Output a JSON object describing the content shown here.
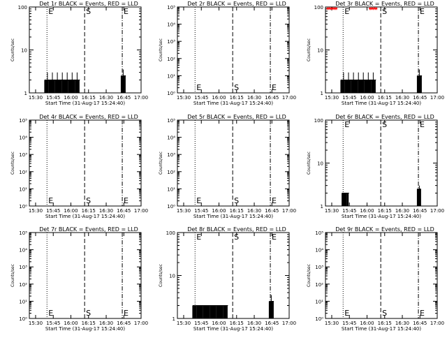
{
  "chart_data": [
    {
      "title": "Det 1r BLACK = Events, RED = LLD",
      "type": "line",
      "scale": "log",
      "ylim": [
        1,
        100
      ],
      "ytick_labels": [
        "1",
        "10",
        "100"
      ],
      "ylabel": "Counts/sec",
      "xlabel": "Start Time (31-Aug-17 15:24:40)",
      "xtick_labels": [
        "15:30",
        "15:45",
        "16:00",
        "16:15",
        "16:30",
        "16:45",
        "17:00"
      ],
      "markers": [
        {
          "label": "E",
          "t": 15.0,
          "style": "dotted"
        },
        {
          "label": "S",
          "t": 47.0,
          "style": "dashed"
        },
        {
          "label": "E",
          "t": 79.0,
          "style": "dashdot"
        }
      ],
      "black_segments": [
        {
          "t0": 13,
          "t1": 43,
          "level": 2.0,
          "spike": 3.0
        },
        {
          "t0": 78,
          "t1": 82,
          "level": 2.5,
          "spike": 3.5
        }
      ],
      "red_segments": []
    },
    {
      "title": "Det 2r BLACK = Events, RED = LLD",
      "type": "line",
      "scale": "log",
      "ylim": [
        1,
        100000
      ],
      "ytick_labels": [
        "10⁰",
        "10¹",
        "10²",
        "10³",
        "10⁴",
        "10⁵"
      ],
      "ylabel": "Counts/sec",
      "xlabel": "Start Time (31-Aug-17 15:24:40)",
      "xtick_labels": [
        "15:30",
        "15:45",
        "16:00",
        "16:15",
        "16:30",
        "16:45",
        "17:00"
      ],
      "markers": [
        {
          "label": "E",
          "t": 15.0,
          "style": "dotted"
        },
        {
          "label": "S",
          "t": 47.0,
          "style": "dashed"
        },
        {
          "label": "E",
          "t": 79.0,
          "style": "dashdot"
        }
      ],
      "black_segments": [],
      "red_segments": []
    },
    {
      "title": "Det 3r BLACK = Events, RED = LLD",
      "type": "line",
      "scale": "log",
      "ylim": [
        1,
        100
      ],
      "ytick_labels": [
        "1",
        "10",
        "100"
      ],
      "ylabel": "Counts/sec",
      "xlabel": "Start Time (31-Aug-17 15:24:40)",
      "xtick_labels": [
        "15:30",
        "15:45",
        "16:00",
        "16:15",
        "16:30",
        "16:45",
        "17:00"
      ],
      "markers": [
        {
          "label": "E",
          "t": 15.0,
          "style": "dotted"
        },
        {
          "label": "S",
          "t": 47.0,
          "style": "dashed"
        },
        {
          "label": "E",
          "t": 79.0,
          "style": "dashdot"
        }
      ],
      "black_segments": [
        {
          "t0": 13,
          "t1": 43,
          "level": 2.0,
          "spike": 3.0
        },
        {
          "t0": 78,
          "t1": 82,
          "level": 2.5,
          "spike": 3.5
        }
      ],
      "red_segments": [
        {
          "t0": 1,
          "t1": 10,
          "level": 96
        },
        {
          "t0": 37,
          "t1": 44,
          "level": 96
        }
      ]
    },
    {
      "title": "Det 4r BLACK = Events, RED = LLD",
      "type": "line",
      "scale": "log",
      "ylim": [
        1,
        100000
      ],
      "ytick_labels": [
        "10⁰",
        "10¹",
        "10²",
        "10³",
        "10⁴",
        "10⁵"
      ],
      "ylabel": "Counts/sec",
      "xlabel": "Start Time (31-Aug-17 15:24:40)",
      "xtick_labels": [
        "15:30",
        "15:45",
        "16:00",
        "16:15",
        "16:30",
        "16:45",
        "17:00"
      ],
      "markers": [
        {
          "label": "E",
          "t": 15.0,
          "style": "dotted"
        },
        {
          "label": "S",
          "t": 47.0,
          "style": "dashed"
        },
        {
          "label": "E",
          "t": 79.0,
          "style": "dashdot"
        }
      ],
      "black_segments": [],
      "red_segments": []
    },
    {
      "title": "Det 5r BLACK = Events, RED = LLD",
      "type": "line",
      "scale": "log",
      "ylim": [
        1,
        100000
      ],
      "ytick_labels": [
        "10⁰",
        "10¹",
        "10²",
        "10³",
        "10⁴",
        "10⁵"
      ],
      "ylabel": "Counts/sec",
      "xlabel": "Start Time (31-Aug-17 15:24:40)",
      "xtick_labels": [
        "15:30",
        "15:45",
        "16:00",
        "16:15",
        "16:30",
        "16:45",
        "17:00"
      ],
      "markers": [
        {
          "label": "E",
          "t": 15.0,
          "style": "dotted"
        },
        {
          "label": "S",
          "t": 47.0,
          "style": "dashed"
        },
        {
          "label": "E",
          "t": 79.0,
          "style": "dashdot"
        }
      ],
      "black_segments": [],
      "red_segments": []
    },
    {
      "title": "Det 6r BLACK = Events, RED = LLD",
      "type": "line",
      "scale": "log",
      "ylim": [
        1,
        100
      ],
      "ytick_labels": [
        "1",
        "10",
        "100"
      ],
      "ylabel": "Counts/sec",
      "xlabel": "Start Time (31-Aug-17 15:24:40)",
      "xtick_labels": [
        "15:30",
        "15:45",
        "16:00",
        "16:15",
        "16:30",
        "16:45",
        "17:00"
      ],
      "markers": [
        {
          "label": "E",
          "t": 15.0,
          "style": "dotted"
        },
        {
          "label": "S",
          "t": 47.0,
          "style": "dashed"
        },
        {
          "label": "E",
          "t": 79.0,
          "style": "dashdot"
        }
      ],
      "black_segments": [
        {
          "t0": 14,
          "t1": 20,
          "level": 2.0,
          "spike": 2.0
        },
        {
          "t0": 78,
          "t1": 81,
          "level": 2.5,
          "spike": 3.0
        }
      ],
      "red_segments": []
    },
    {
      "title": "Det 7r BLACK = Events, RED = LLD",
      "type": "line",
      "scale": "log",
      "ylim": [
        1,
        100000
      ],
      "ytick_labels": [
        "10⁰",
        "10¹",
        "10²",
        "10³",
        "10⁴",
        "10⁵"
      ],
      "ylabel": "Counts/sec",
      "xlabel": "Start Time (31-Aug-17 15:24:40)",
      "xtick_labels": [
        "15:30",
        "15:45",
        "16:00",
        "16:15",
        "16:30",
        "16:45",
        "17:00"
      ],
      "markers": [
        {
          "label": "E",
          "t": 15.0,
          "style": "dotted"
        },
        {
          "label": "S",
          "t": 47.0,
          "style": "dashed"
        },
        {
          "label": "E",
          "t": 79.0,
          "style": "dashdot"
        }
      ],
      "black_segments": [],
      "red_segments": []
    },
    {
      "title": "Det 8r BLACK = Events, RED = LLD",
      "type": "line",
      "scale": "log",
      "ylim": [
        1,
        100
      ],
      "ytick_labels": [
        "1",
        "10",
        "100"
      ],
      "ylabel": "Counts/sec",
      "xlabel": "Start Time (31-Aug-17 15:24:40)",
      "xtick_labels": [
        "15:30",
        "15:45",
        "16:00",
        "16:15",
        "16:30",
        "16:45",
        "17:00"
      ],
      "markers": [
        {
          "label": "E",
          "t": 15.0,
          "style": "dotted"
        },
        {
          "label": "S",
          "t": 47.0,
          "style": "dashed"
        },
        {
          "label": "E",
          "t": 79.0,
          "style": "dashdot"
        }
      ],
      "black_segments": [
        {
          "t0": 13,
          "t1": 43,
          "level": 2.0,
          "spike": 2.0
        },
        {
          "t0": 78,
          "t1": 82,
          "level": 2.5,
          "spike": 3.5
        }
      ],
      "red_segments": []
    },
    {
      "title": "Det 9r BLACK = Events, RED = LLD",
      "type": "line",
      "scale": "log",
      "ylim": [
        1,
        100000
      ],
      "ytick_labels": [
        "10⁰",
        "10¹",
        "10²",
        "10³",
        "10⁴",
        "10⁵"
      ],
      "ylabel": "Counts/sec",
      "xlabel": "Start Time (31-Aug-17 15:24:40)",
      "xtick_labels": [
        "15:30",
        "15:45",
        "16:00",
        "16:15",
        "16:30",
        "16:45",
        "17:00"
      ],
      "markers": [
        {
          "label": "E",
          "t": 15.0,
          "style": "dotted"
        },
        {
          "label": "S",
          "t": 47.0,
          "style": "dashed"
        },
        {
          "label": "E",
          "t": 79.0,
          "style": "dashdot"
        }
      ],
      "black_segments": [],
      "red_segments": []
    }
  ]
}
